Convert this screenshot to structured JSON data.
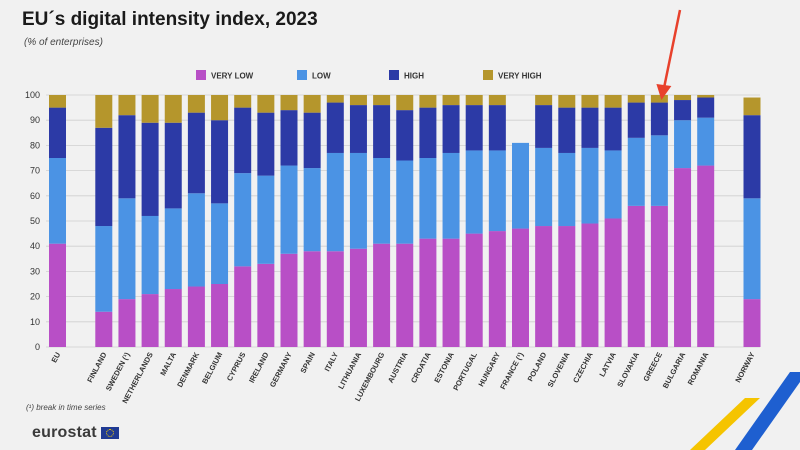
{
  "header": {
    "title": "EU´s digital intensity index, 2023",
    "subtitle": "(% of enterprises)"
  },
  "footer": {
    "note": "(¹) break in time series",
    "logo": "eurostat"
  },
  "colors": {
    "very_low": "#b84fc6",
    "low": "#4b93e4",
    "high": "#2c3aa6",
    "very_high": "#b5962c",
    "arrow": "#e8412c",
    "accent_yellow": "#f5c400",
    "accent_blue": "#1e5fd0"
  },
  "chart_data": {
    "type": "bar",
    "stacked": true,
    "title": "EU´s digital intensity index, 2023",
    "subtitle": "(% of enterprises)",
    "ylim": [
      0,
      100
    ],
    "yticks": [
      0,
      10,
      20,
      30,
      40,
      50,
      60,
      70,
      80,
      90,
      100
    ],
    "grid": true,
    "legend_position": "top",
    "categories": [
      "EU",
      "FINLAND",
      "SWEDEN (¹)",
      "NETHERLANDS",
      "MALTA",
      "DENMARK",
      "BELGIUM",
      "CYPRUS",
      "IRELAND",
      "GERMANY",
      "SPAIN",
      "ITALY",
      "LITHUANIA",
      "LUXEMBOURG",
      "AUSTRIA",
      "CROATIA",
      "ESTONIA",
      "PORTUGAL",
      "HUNGARY",
      "FRANCE (¹)",
      "POLAND",
      "SLOVENIA",
      "CZECHIA",
      "LATVIA",
      "SLOVAKIA",
      "GREECE",
      "BULGARIA",
      "ROMANIA",
      "NORWAY"
    ],
    "gap_after_index": [
      0,
      27
    ],
    "series": [
      {
        "name": "VERY LOW",
        "color": "#b84fc6",
        "values": [
          41,
          14,
          19,
          21,
          23,
          24,
          25,
          32,
          33,
          37,
          38,
          38,
          39,
          41,
          41,
          43,
          43,
          45,
          46,
          47,
          48,
          48,
          49,
          51,
          56,
          56,
          71,
          72,
          19
        ]
      },
      {
        "name": "LOW",
        "color": "#4b93e4",
        "values": [
          34,
          34,
          40,
          31,
          32,
          37,
          32,
          37,
          35,
          35,
          33,
          39,
          38,
          34,
          33,
          32,
          34,
          33,
          32,
          34,
          31,
          29,
          30,
          27,
          27,
          28,
          19,
          19,
          40
        ]
      },
      {
        "name": "HIGH",
        "color": "#2c3aa6",
        "values": [
          20,
          39,
          33,
          37,
          34,
          32,
          33,
          26,
          25,
          22,
          22,
          20,
          19,
          21,
          20,
          20,
          19,
          18,
          18,
          0,
          17,
          18,
          16,
          17,
          14,
          13,
          8,
          8,
          33
        ]
      },
      {
        "name": "VERY HIGH",
        "color": "#b5962c",
        "values": [
          5,
          13,
          8,
          11,
          11,
          7,
          10,
          5,
          7,
          6,
          7,
          3,
          4,
          4,
          6,
          5,
          4,
          4,
          4,
          0,
          4,
          5,
          5,
          5,
          3,
          3,
          2,
          1,
          7
        ]
      }
    ],
    "annotation": {
      "type": "arrow",
      "target_category": "GREECE"
    }
  }
}
